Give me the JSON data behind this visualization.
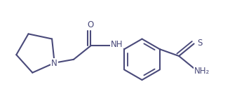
{
  "bg_color": "#ffffff",
  "line_color": "#4a4a7a",
  "text_color": "#4a4a7a",
  "line_width": 1.5,
  "font_size": 8.5,
  "figsize": [
    3.28,
    1.57
  ],
  "dpi": 100,
  "xlim": [
    -0.05,
    3.3
  ],
  "ylim": [
    0.0,
    1.57
  ]
}
